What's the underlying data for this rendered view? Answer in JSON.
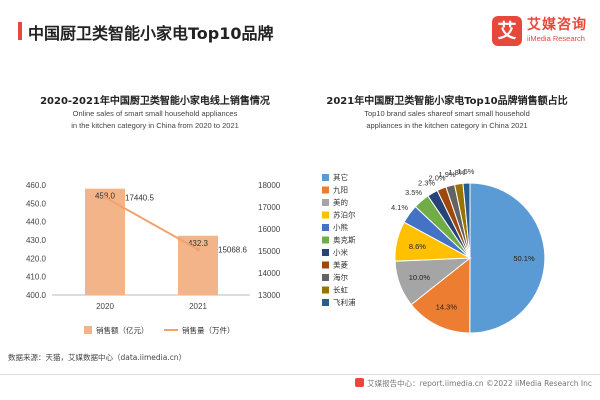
{
  "header": {
    "title": "中国厨卫类智能小家电Top10品牌"
  },
  "logo": {
    "mark": "艾",
    "name_cn": "艾媒咨询",
    "name_en": "iiMedia Research"
  },
  "colors": {
    "accent": "#e8473c",
    "bar": "#f3b48a",
    "line": "#f0a36e",
    "pie": [
      "#5b9bd5",
      "#ed7d31",
      "#a5a5a5",
      "#ffc000",
      "#4472c4",
      "#70ad47",
      "#264478",
      "#9e480e",
      "#636363",
      "#997300",
      "#255e91"
    ]
  },
  "chart_data": [
    {
      "type": "bar",
      "title": "2020-2021年中国厨卫类智能小家电线上销售情况",
      "subtitle_lines": [
        "Online sales of smart small household appliances",
        "in the kitchen category in China from 2020 to 2021"
      ],
      "categories": [
        "2020",
        "2021"
      ],
      "series": [
        {
          "name": "销售额（亿元）",
          "type": "bar",
          "axis": "left",
          "values": [
            458.0,
            432.3
          ],
          "labels": [
            "458.0",
            "432.3"
          ]
        },
        {
          "name": "销售量（万件）",
          "type": "line",
          "axis": "right",
          "values": [
            17440.5,
            15068.6
          ],
          "labels": [
            "17440.5",
            "15068.6"
          ]
        }
      ],
      "y_left": {
        "min": 400,
        "max": 460,
        "ticks": [
          "400.0",
          "410.0",
          "420.0",
          "430.0",
          "440.0",
          "450.0",
          "460.0"
        ]
      },
      "y_right": {
        "min": 13000,
        "max": 18000,
        "ticks": [
          "13000",
          "14000",
          "15000",
          "16000",
          "17000",
          "18000"
        ]
      }
    },
    {
      "type": "pie",
      "title": "2021年中国厨卫类智能小家电Top10品牌销售额占比",
      "subtitle_lines": [
        "Top10 brand sales shareof smart small household",
        "appliances in the kitchen category in China 2021"
      ],
      "legend": [
        "其它",
        "九阳",
        "美的",
        "苏泊尔",
        "小熊",
        "奥克斯",
        "小米",
        "美菱",
        "海尔",
        "长虹",
        "飞利浦"
      ],
      "values": [
        50.1,
        14.3,
        10.0,
        8.6,
        4.1,
        3.5,
        2.3,
        2.0,
        1.9,
        1.8,
        1.5
      ],
      "labels": [
        "50.1%",
        "14.3%",
        "10.0%",
        "8.6%",
        "4.1%",
        "3.5%",
        "2.3%",
        "2.0%",
        "1.9%",
        "1.8%",
        "1.5%"
      ]
    }
  ],
  "footer": {
    "source": "数据来源：天猫，艾媒数据中心（data.iimedia.cn）",
    "copyright": "艾媒报告中心：report.iimedia.cn ©2022 iiMedia Research Inc"
  }
}
